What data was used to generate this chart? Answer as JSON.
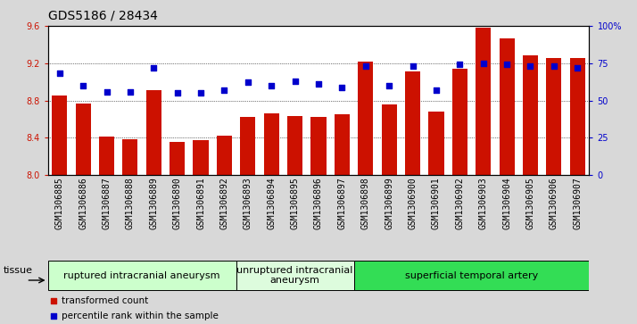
{
  "title": "GDS5186 / 28434",
  "samples": [
    "GSM1306885",
    "GSM1306886",
    "GSM1306887",
    "GSM1306888",
    "GSM1306889",
    "GSM1306890",
    "GSM1306891",
    "GSM1306892",
    "GSM1306893",
    "GSM1306894",
    "GSM1306895",
    "GSM1306896",
    "GSM1306897",
    "GSM1306898",
    "GSM1306899",
    "GSM1306900",
    "GSM1306901",
    "GSM1306902",
    "GSM1306903",
    "GSM1306904",
    "GSM1306905",
    "GSM1306906",
    "GSM1306907"
  ],
  "bar_values": [
    8.85,
    8.77,
    8.41,
    8.38,
    8.91,
    8.35,
    8.37,
    8.42,
    8.62,
    8.66,
    8.63,
    8.62,
    8.65,
    9.22,
    8.76,
    9.11,
    8.68,
    9.14,
    9.58,
    9.47,
    9.28,
    9.26,
    9.26
  ],
  "dot_percentiles": [
    68,
    60,
    56,
    56,
    72,
    55,
    55,
    57,
    62,
    60,
    63,
    61,
    59,
    73,
    60,
    73,
    57,
    74,
    75,
    74,
    73,
    73,
    72
  ],
  "ylim_left": [
    8.0,
    9.6
  ],
  "ylim_right": [
    0,
    100
  ],
  "yticks_left": [
    8.0,
    8.4,
    8.8,
    9.2,
    9.6
  ],
  "yticks_right": [
    0,
    25,
    50,
    75,
    100
  ],
  "ytick_right_labels": [
    "0",
    "25",
    "50",
    "75",
    "100%"
  ],
  "bar_color": "#CC1100",
  "dot_color": "#0000CC",
  "bar_bottom": 8.0,
  "groups": [
    {
      "label": "ruptured intracranial aneurysm",
      "start": 0,
      "end": 8,
      "color": "#ccffcc"
    },
    {
      "label": "unruptured intracranial\naneurysm",
      "start": 8,
      "end": 13,
      "color": "#ddfcdd"
    },
    {
      "label": "superficial temporal artery",
      "start": 13,
      "end": 23,
      "color": "#33dd55"
    }
  ],
  "tissue_label": "tissue",
  "legend_items": [
    {
      "label": "transformed count",
      "color": "#CC1100"
    },
    {
      "label": "percentile rank within the sample",
      "color": "#0000CC"
    }
  ],
  "bg_color": "#d8d8d8",
  "plot_bg": "#ffffff",
  "title_fontsize": 10,
  "tick_fontsize": 7,
  "group_fontsize": 8
}
